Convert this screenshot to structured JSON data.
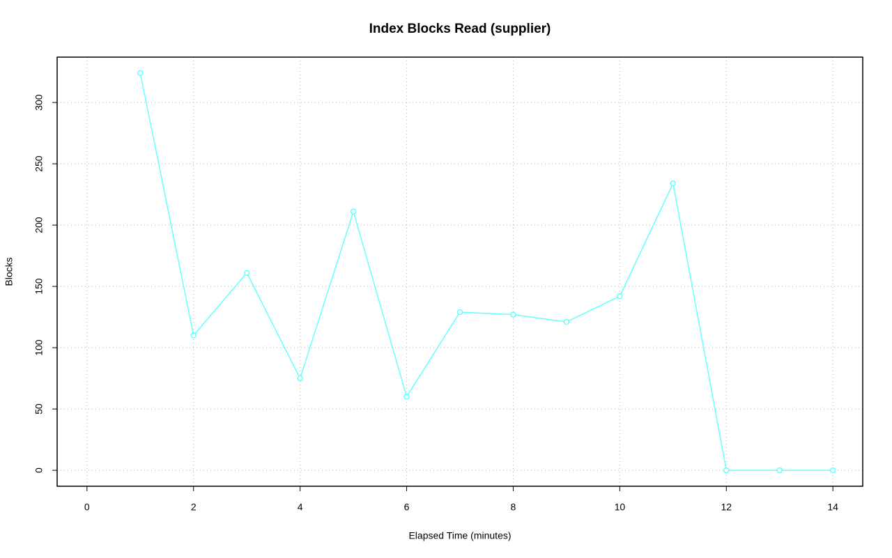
{
  "chart_data": {
    "type": "line",
    "title": "Index Blocks Read (supplier)",
    "x_label": "Elapsed Time (minutes)",
    "y_label": "Blocks",
    "x": [
      1,
      2,
      3,
      4,
      5,
      6,
      7,
      8,
      9,
      10,
      11,
      12,
      13,
      14
    ],
    "series": [
      {
        "name": "Blocks",
        "color": "#66ffff",
        "values": [
          324,
          110,
          161,
          75,
          211,
          60,
          129,
          127,
          121,
          142,
          234,
          0,
          0,
          0
        ]
      }
    ],
    "xlim": [
      -0.56,
      14.56
    ],
    "xticks": [
      0,
      2,
      4,
      6,
      8,
      10,
      12,
      14
    ],
    "ylim": [
      -13,
      337
    ],
    "yticks": [
      0,
      50,
      100,
      150,
      200,
      250,
      300
    ],
    "grid": true
  }
}
